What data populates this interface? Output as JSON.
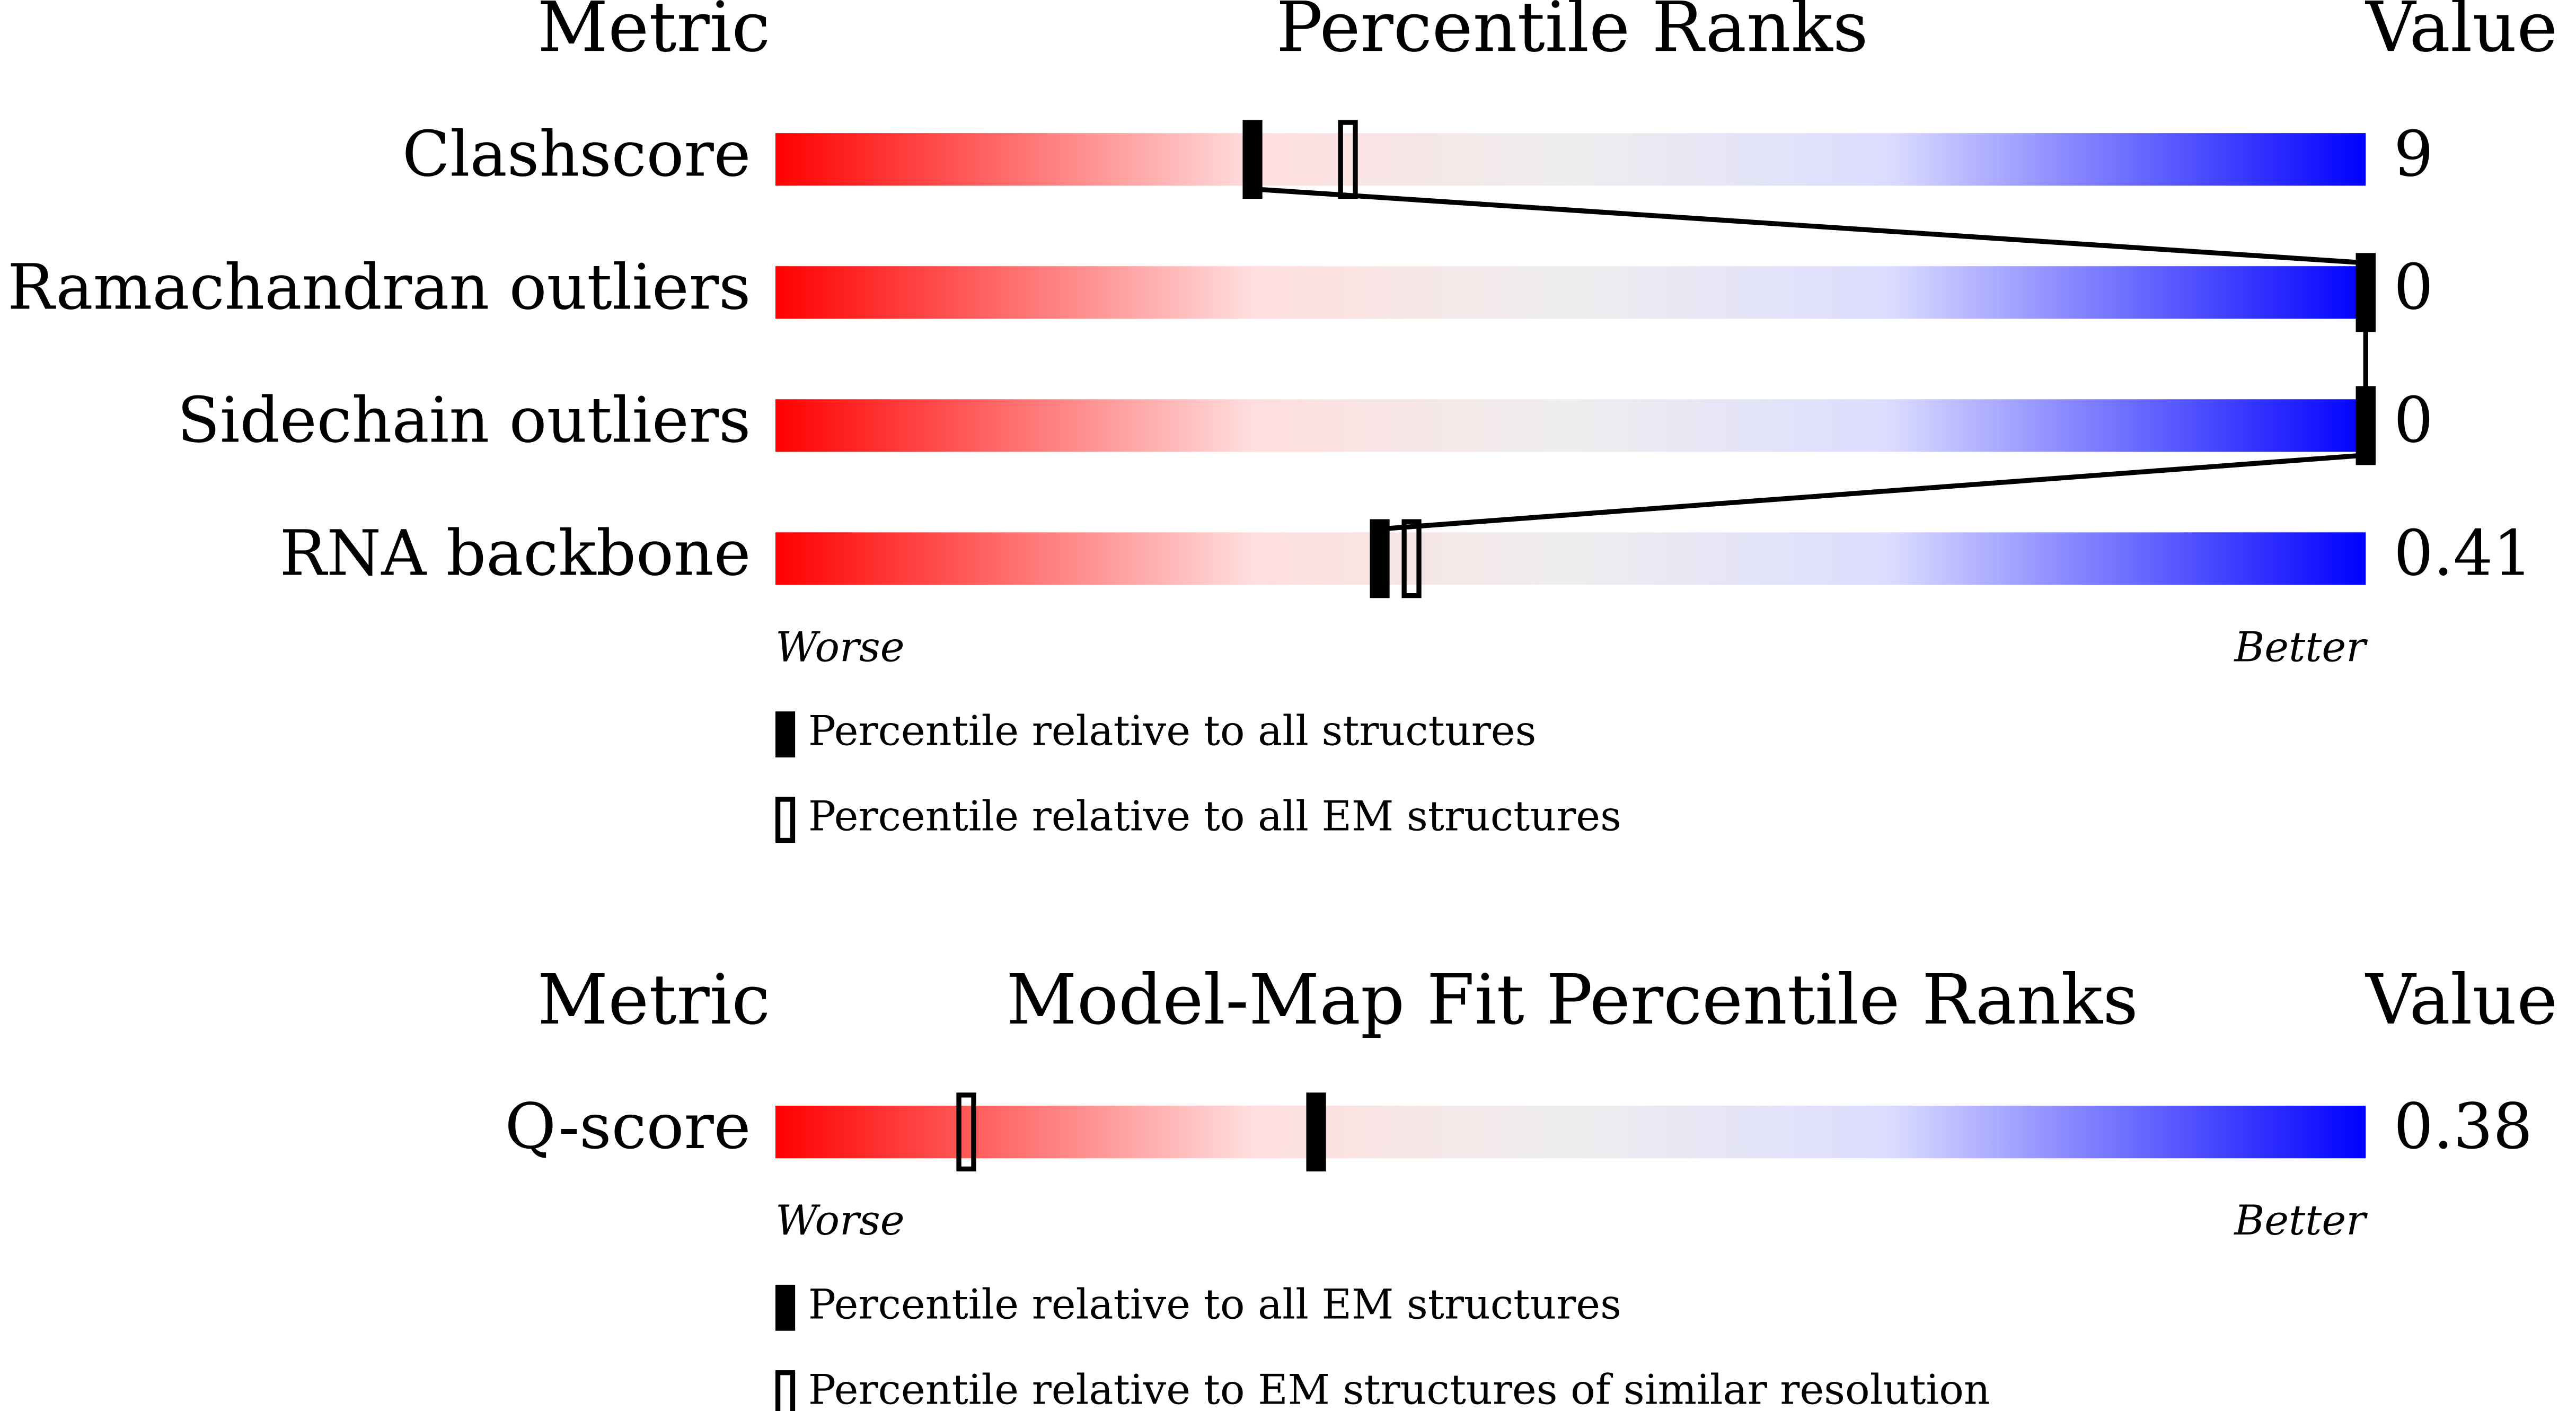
{
  "chart_data": [
    {
      "type": "percentile-slider",
      "metric_header": "Metric",
      "title": "Percentile Ranks",
      "value_header": "Value",
      "categories": [
        "Clashscore",
        "Ramachandran outliers",
        "Sidechain outliers",
        "RNA backbone"
      ],
      "metric_values": [
        "9",
        "0",
        "0",
        "0.41"
      ],
      "series": [
        {
          "name": "Percentile relative to all structures",
          "marker": "filled",
          "values": [
            30,
            100,
            100,
            38
          ]
        },
        {
          "name": "Percentile relative to all EM structures",
          "marker": "open",
          "values": [
            36,
            100,
            100,
            40
          ]
        }
      ],
      "xlim": [
        0,
        100
      ],
      "low_label": "Worse",
      "high_label": "Better"
    },
    {
      "type": "percentile-slider",
      "metric_header": "Metric",
      "title": "Model-Map Fit Percentile Ranks",
      "value_header": "Value",
      "categories": [
        "Q-score"
      ],
      "metric_values": [
        "0.38"
      ],
      "series": [
        {
          "name": "Percentile relative to all EM structures",
          "marker": "filled",
          "values": [
            34
          ]
        },
        {
          "name": "Percentile relative to EM structures of similar resolution",
          "marker": "open",
          "values": [
            12
          ]
        }
      ],
      "xlim": [
        0,
        100
      ],
      "low_label": "Worse",
      "high_label": "Better"
    }
  ]
}
